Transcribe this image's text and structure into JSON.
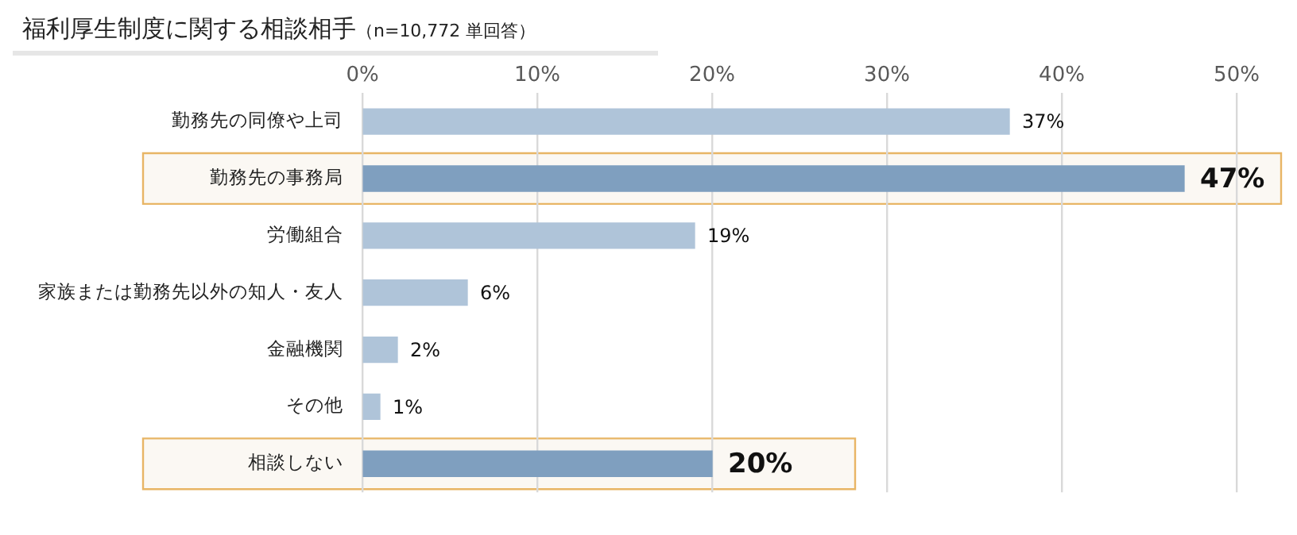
{
  "chart_data": {
    "type": "bar",
    "orientation": "horizontal",
    "title": "福利厚生制度に関する相談相手",
    "subtitle": "（n=10,772 単回答）",
    "categories": [
      "勤務先の同僚や上司",
      "勤務先の事務局",
      "労働組合",
      "家族または勤務先以外の知人・友人",
      "金融機関",
      "その他",
      "相談しない"
    ],
    "values": [
      37,
      47,
      19,
      6,
      2,
      1,
      20
    ],
    "value_labels": [
      "37%",
      "47%",
      "19%",
      "6%",
      "2%",
      "1%",
      "20%"
    ],
    "colors": [
      "#afc4d9",
      "#7f9fbf",
      "#afc4d9",
      "#afc4d9",
      "#afc4d9",
      "#afc4d9",
      "#7f9fbf"
    ],
    "xlim": [
      0,
      50
    ],
    "xticks": [
      {
        "value": 0,
        "label": "0%"
      },
      {
        "value": 10,
        "label": "10%"
      },
      {
        "value": 20,
        "label": "20%"
      },
      {
        "value": 30,
        "label": "30%"
      },
      {
        "value": 40,
        "label": "40%"
      },
      {
        "value": 50,
        "label": "50%"
      }
    ],
    "bands": [
      {
        "axis": "y",
        "from": "勤務先の事務局",
        "to": "勤務先の事務局",
        "color": "#fbf8f3"
      },
      {
        "axis": "y",
        "from": "相談しない",
        "to": "相談しない",
        "color": "#fbf8f3"
      }
    ],
    "grid": "x",
    "legend": false
  }
}
